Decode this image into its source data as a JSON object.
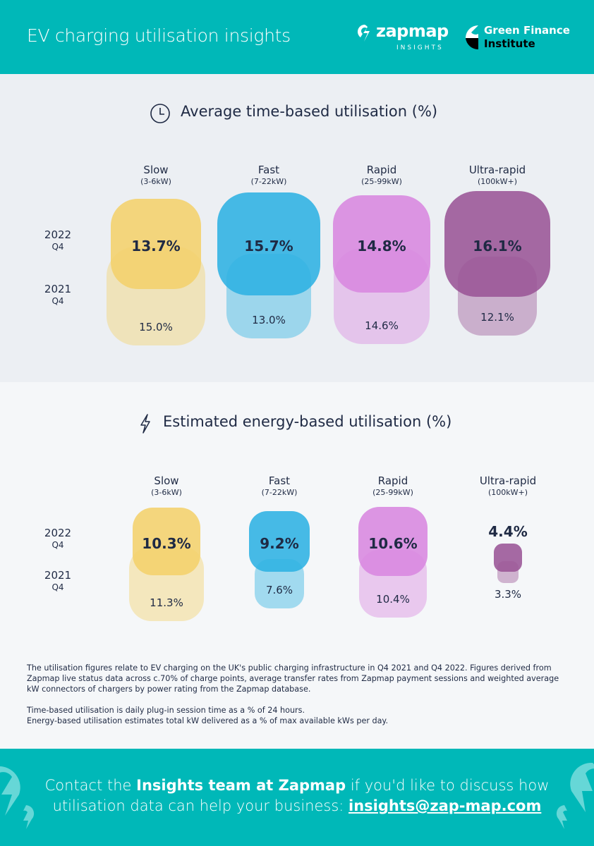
{
  "header": {
    "title": "EV charging utilisation insights",
    "logo_zapmap": "zapmap",
    "logo_zapmap_sub": "INSIGHTS",
    "logo_gfi_line1": "Green Finance",
    "logo_gfi_line2": "Institute"
  },
  "colors": {
    "brand_teal": "#00b8b8",
    "slow": "#f4d26b",
    "fast": "#2eb2e2",
    "rapid": "#d887df",
    "ultra_rapid": "#9a5596",
    "text": "#1f2a44"
  },
  "chart_data": [
    {
      "type": "bar",
      "title": "Average time-based utilisation (%)",
      "icon": "clock-icon",
      "categories": [
        "Slow",
        "Fast",
        "Rapid",
        "Ultra-rapid"
      ],
      "category_subtitles": [
        "(3-6kW)",
        "(7-22kW)",
        "(25-99kW)",
        "(100kW+)"
      ],
      "series": [
        {
          "name": "2022 Q4",
          "year": "2022",
          "quarter": "Q4",
          "values": [
            13.7,
            15.7,
            14.8,
            16.1
          ],
          "labels": [
            "13.7%",
            "15.7%",
            "14.8%",
            "16.1%"
          ]
        },
        {
          "name": "2021 Q4",
          "year": "2021",
          "quarter": "Q4",
          "values": [
            15.0,
            13.0,
            14.6,
            12.1
          ],
          "labels": [
            "15.0%",
            "13.0%",
            "14.6%",
            "12.1%"
          ]
        }
      ]
    },
    {
      "type": "bar",
      "title": "Estimated energy-based utilisation (%)",
      "icon": "lightning-bolt-icon",
      "categories": [
        "Slow",
        "Fast",
        "Rapid",
        "Ultra-rapid"
      ],
      "category_subtitles": [
        "(3-6kW)",
        "(7-22kW)",
        "(25-99kW)",
        "(100kW+)"
      ],
      "series": [
        {
          "name": "2022 Q4",
          "year": "2022",
          "quarter": "Q4",
          "values": [
            10.3,
            9.2,
            10.6,
            4.4
          ],
          "labels": [
            "10.3%",
            "9.2%",
            "10.6%",
            "4.4%"
          ]
        },
        {
          "name": "2021 Q4",
          "year": "2021",
          "quarter": "Q4",
          "values": [
            11.3,
            7.6,
            10.4,
            3.3
          ],
          "labels": [
            "11.3%",
            "7.6%",
            "10.4%",
            "3.3%"
          ]
        }
      ]
    }
  ],
  "notes": [
    "The utilisation figures relate to EV charging on the UK's public charging infrastructure in Q4 2021 and Q4 2022. Figures derived from Zapmap live status data across c.70% of charge points, average transfer rates from Zapmap payment sessions and weighted average kW connectors of chargers by power rating from the Zapmap database.",
    "Time-based utilisation is daily plug-in session time as a % of 24 hours.",
    "Energy-based utilisation estimates total kW delivered as a % of max available kWs per day."
  ],
  "footer": {
    "text_1": "Contact the ",
    "text_bold": "Insights team at Zapmap",
    "text_2": " if you'd like to discuss how utilisation data can help your business: ",
    "email": "insights@zap-map.com"
  }
}
